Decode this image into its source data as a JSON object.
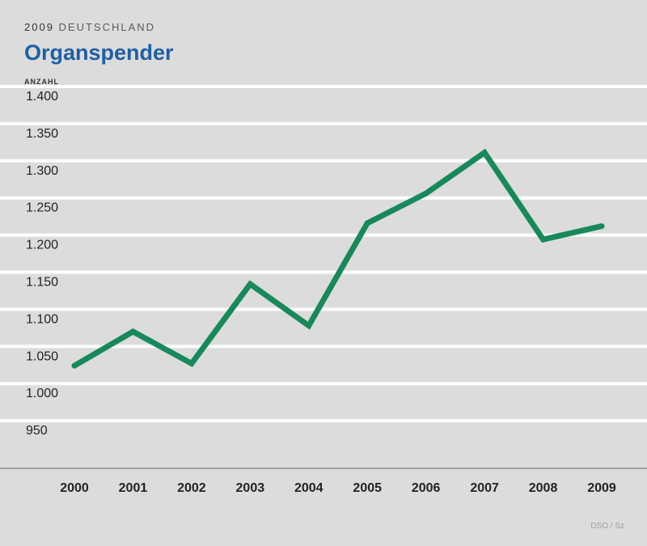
{
  "header": {
    "year": "2009",
    "region": "DEUTSCHLAND",
    "title": "Organspender",
    "ylabel": "ANZAHL"
  },
  "source": "DSO / Sz",
  "colors": {
    "background": "#dcdcdc",
    "line": "#17895a",
    "title": "#1f5fa6",
    "gridline": "#ffffff"
  },
  "chart_data": {
    "type": "line",
    "title": "Organspender",
    "ylabel": "ANZAHL",
    "xlabel": "",
    "categories": [
      "2000",
      "2001",
      "2002",
      "2003",
      "2004",
      "2005",
      "2006",
      "2007",
      "2008",
      "2009"
    ],
    "series": [
      {
        "values": [
          1036,
          1082,
          1039,
          1146,
          1090,
          1228,
          1268,
          1323,
          1206,
          1224
        ]
      }
    ],
    "ylim": [
      900,
      1400
    ],
    "yticks": [
      950,
      1000,
      1050,
      1100,
      1150,
      1200,
      1250,
      1300,
      1350,
      1400
    ],
    "ytick_labels": [
      "950",
      "1.000",
      "1.050",
      "1.100",
      "1.150",
      "1.200",
      "1.250",
      "1.300",
      "1.350",
      "1.400"
    ],
    "grid": true,
    "legend": "none"
  }
}
